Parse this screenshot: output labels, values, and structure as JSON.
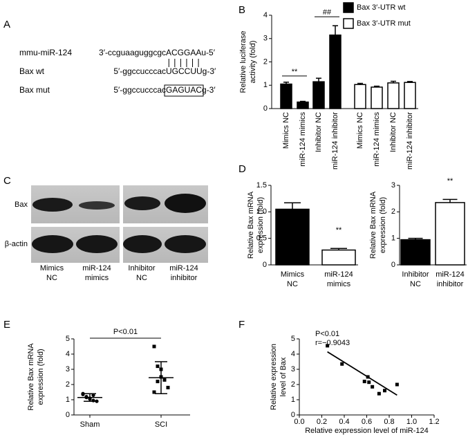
{
  "panel_a": {
    "label": "A",
    "rows": [
      {
        "name": "mmu-miR-124",
        "seq": [
          "3′-ccguaaguggcgc",
          "ACGGAA",
          "u-5′"
        ]
      },
      {
        "name": "Bax wt",
        "seq": [
          "5′-ggccucccac",
          "UGCCUU",
          "g-3′"
        ]
      },
      {
        "name": "Bax mut",
        "seq": [
          "5′-ggccucccac",
          "GAGUAC",
          "g-3′"
        ]
      }
    ]
  },
  "panel_c": {
    "label": "C",
    "rows": [
      "Bax",
      "β-actin"
    ],
    "lanes": [
      [
        "Mimics",
        "NC"
      ],
      [
        "miR-124",
        "mimics"
      ],
      [
        "Inhibitor",
        "NC"
      ],
      [
        "miR-124",
        "inhibitor"
      ]
    ]
  },
  "chart_data": [
    {
      "type": "bar",
      "label": "B",
      "ylabel": [
        "Relative luciferase",
        "activity (fold)"
      ],
      "categories": [
        "Mimics NC",
        "miR-124 mimics",
        "Inhibitor NC",
        "miR-124 inhibitor",
        "Mimics NC",
        "miR-124 mimics",
        "Inhibitor NC",
        "miR-124 inhibitor"
      ],
      "series": [
        {
          "name": "Bax 3′-UTR wt",
          "color": "#000000",
          "values": [
            1.05,
            0.28,
            1.15,
            3.15,
            null,
            null,
            null,
            null
          ],
          "errors": [
            0.08,
            0.03,
            0.15,
            0.4,
            null,
            null,
            null,
            null
          ]
        },
        {
          "name": "Bax 3′-UTR mut",
          "color": "#ffffff",
          "values": [
            null,
            null,
            null,
            null,
            1.03,
            0.92,
            1.1,
            1.12
          ],
          "errors": [
            null,
            null,
            null,
            null,
            0.05,
            0.04,
            0.07,
            0.04
          ]
        }
      ],
      "ylim": [
        0,
        4
      ],
      "yticks": [
        0,
        1,
        2,
        3,
        4
      ],
      "annotations": [
        "**",
        "##"
      ]
    },
    {
      "type": "bar",
      "label": "D",
      "ylabel": [
        "Relative Bax mRNA",
        "expression (fold)"
      ],
      "categories": [
        [
          "Mimics",
          "NC"
        ],
        [
          "miR-124",
          "mimics"
        ]
      ],
      "series": [
        {
          "color": "#000000",
          "values": [
            1.05,
            null
          ],
          "errors": [
            0.12,
            null
          ]
        },
        {
          "color": "#ffffff",
          "values": [
            null,
            0.28
          ],
          "errors": [
            null,
            0.03
          ]
        }
      ],
      "ylim": [
        0,
        1.5
      ],
      "yticks": [
        0,
        0.5,
        {
          "value": 1,
          "label": "1.0"
        },
        1.5
      ],
      "annotations": [
        "**"
      ]
    },
    {
      "type": "bar",
      "ylabel": [
        "Relative Bax mRNA",
        "expression (fold)"
      ],
      "categories": [
        [
          "Inhibitor",
          "NC"
        ],
        [
          "miR-124",
          "inhibitor"
        ]
      ],
      "series": [
        {
          "color": "#000000",
          "values": [
            0.95,
            null
          ],
          "errors": [
            0.05,
            null
          ]
        },
        {
          "color": "#ffffff",
          "values": [
            null,
            2.35
          ],
          "errors": [
            null,
            0.12
          ]
        }
      ],
      "ylim": [
        0,
        3
      ],
      "yticks": [
        0,
        1,
        2,
        3
      ],
      "annotations": [
        "**"
      ]
    },
    {
      "type": "strip",
      "label": "E",
      "ylabel": [
        "Relative Bax mRNA",
        "expression  (fold)"
      ],
      "categories": [
        "Sham",
        "SCI"
      ],
      "markers": [
        "circle",
        "square"
      ],
      "points": [
        [
          1.35,
          1.2,
          1.1,
          1.3,
          0.9,
          1.4,
          1.15,
          1.05,
          0.95
        ],
        [
          4.5,
          3.2,
          2.5,
          2.3,
          1.8,
          1.5,
          2.2,
          3.0
        ]
      ],
      "means": [
        1.15,
        2.45
      ],
      "sds": [
        0.25,
        1.05
      ],
      "ylim": [
        0,
        5
      ],
      "yticks": [
        0,
        1,
        2,
        3,
        4,
        5
      ],
      "annotations": [
        "P<0.01"
      ]
    },
    {
      "type": "scatter",
      "label": "F",
      "xlabel": "Relative expression level of miR-124",
      "ylabel": [
        "Relative expression",
        "level of Bax"
      ],
      "x": [
        0.25,
        0.38,
        0.58,
        0.61,
        0.62,
        0.65,
        0.71,
        0.76,
        0.87
      ],
      "y": [
        4.55,
        3.35,
        2.2,
        2.5,
        2.15,
        1.85,
        1.4,
        1.6,
        2.0
      ],
      "fit": {
        "x": [
          0.25,
          0.87
        ],
        "y": [
          4.15,
          1.3
        ]
      },
      "xlim": [
        0,
        1.2
      ],
      "xticks": [
        {
          "value": 0,
          "label": "0.0"
        },
        0.2,
        0.4,
        0.6,
        0.8,
        {
          "value": 1,
          "label": "1.0"
        },
        1.2
      ],
      "ylim": [
        0,
        5
      ],
      "yticks": [
        0,
        1,
        2,
        3,
        4,
        5
      ],
      "annotations": [
        "P<0.01",
        "r=−0.9043"
      ]
    }
  ]
}
